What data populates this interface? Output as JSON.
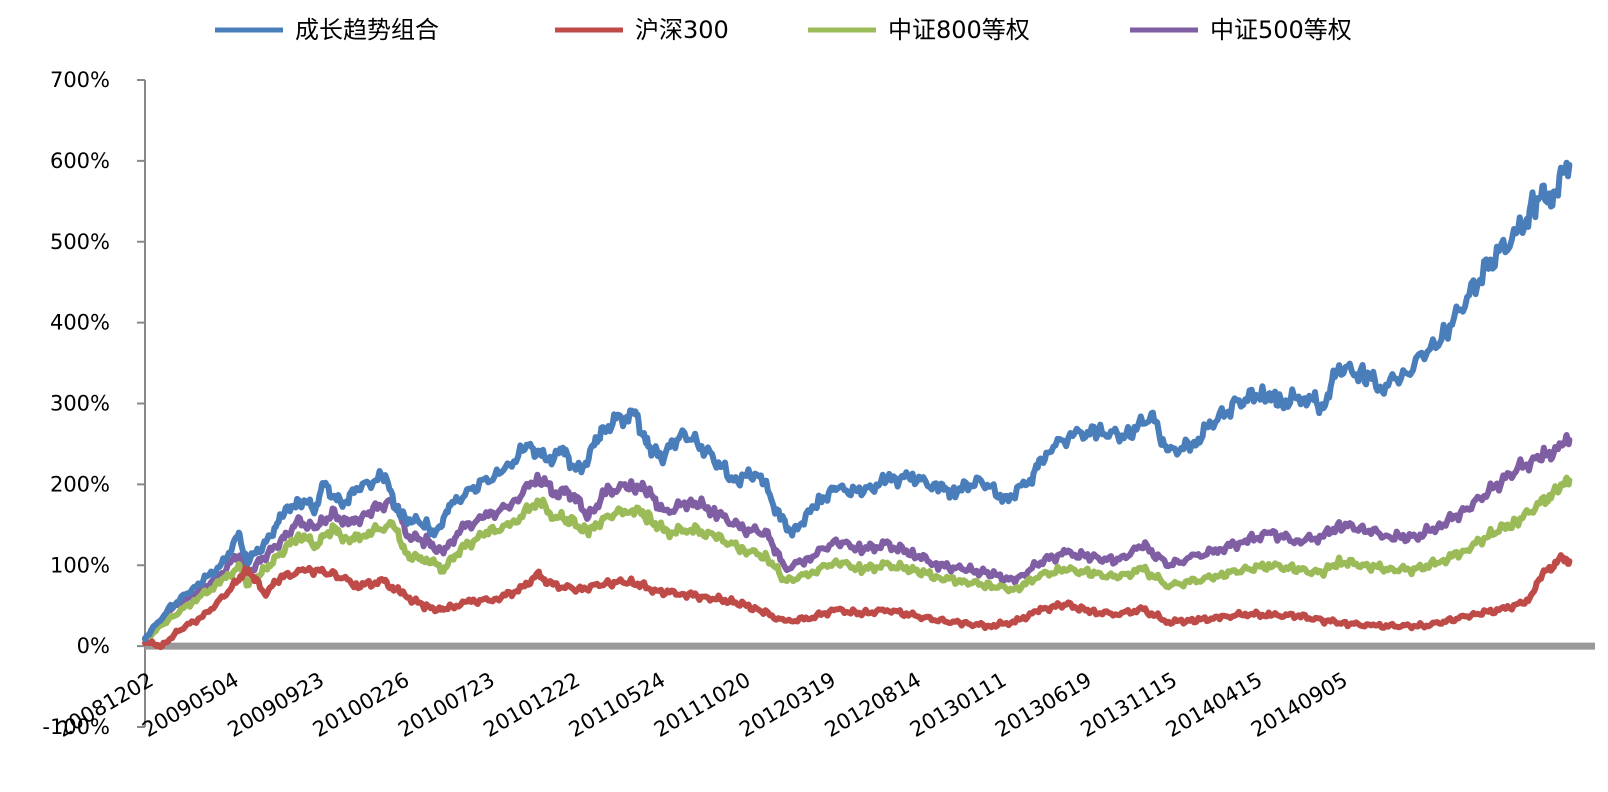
{
  "chart_data": {
    "type": "line",
    "title": "",
    "xlabel": "",
    "ylabel": "",
    "ylim": [
      -100,
      700
    ],
    "y_tick_labels": [
      "-100%",
      "0%",
      "100%",
      "200%",
      "300%",
      "400%",
      "500%",
      "600%",
      "700%"
    ],
    "y_tick_values": [
      -100,
      0,
      100,
      200,
      300,
      400,
      500,
      600,
      700
    ],
    "x_tick_labels": [
      "20081202",
      "20090504",
      "20090923",
      "20100226",
      "20100723",
      "20101222",
      "20110524",
      "20111020",
      "20120319",
      "20120814",
      "20130111",
      "20130619",
      "20131115",
      "20140415",
      "20140905"
    ],
    "grid": false,
    "legend_position": "top",
    "series": [
      {
        "name": "成长趋势组合",
        "color": "#4a7ebb",
        "values": [
          [
            0,
            10
          ],
          [
            0.3,
            48
          ],
          [
            0.6,
            75
          ],
          [
            0.9,
            100
          ],
          [
            1.1,
            138
          ],
          [
            1.2,
            105
          ],
          [
            1.4,
            125
          ],
          [
            1.6,
            160
          ],
          [
            1.8,
            182
          ],
          [
            2,
            170
          ],
          [
            2.1,
            200
          ],
          [
            2.3,
            175
          ],
          [
            2.5,
            195
          ],
          [
            2.8,
            210
          ],
          [
            3,
            160
          ],
          [
            3.3,
            150
          ],
          [
            3.4,
            140
          ],
          [
            3.6,
            175
          ],
          [
            3.9,
            200
          ],
          [
            4.2,
            215
          ],
          [
            4.5,
            250
          ],
          [
            4.7,
            230
          ],
          [
            4.9,
            240
          ],
          [
            5.1,
            215
          ],
          [
            5.3,
            255
          ],
          [
            5.5,
            280
          ],
          [
            5.75,
            285
          ],
          [
            5.9,
            250
          ],
          [
            6.05,
            232
          ],
          [
            6.3,
            265
          ],
          [
            6.6,
            240
          ],
          [
            6.9,
            205
          ],
          [
            7.2,
            215
          ],
          [
            7.45,
            158
          ],
          [
            7.6,
            140
          ],
          [
            7.9,
            180
          ],
          [
            8.1,
            195
          ],
          [
            8.4,
            190
          ],
          [
            8.7,
            205
          ],
          [
            9,
            210
          ],
          [
            9.3,
            195
          ],
          [
            9.5,
            192
          ],
          [
            9.8,
            205
          ],
          [
            10.1,
            180
          ],
          [
            10.4,
            210
          ],
          [
            10.6,
            245
          ],
          [
            10.9,
            262
          ],
          [
            11.2,
            265
          ],
          [
            11.5,
            260
          ],
          [
            11.8,
            285
          ],
          [
            12,
            240
          ],
          [
            12.3,
            250
          ],
          [
            12.5,
            275
          ],
          [
            12.8,
            300
          ],
          [
            13.1,
            315
          ],
          [
            13.3,
            300
          ],
          [
            13.6,
            310
          ],
          [
            13.8,
            295
          ],
          [
            14,
            345
          ],
          [
            14.3,
            335
          ],
          [
            14.5,
            320
          ],
          [
            14.8,
            340
          ],
          [
            15.2,
            380
          ],
          [
            15.5,
            430
          ],
          [
            15.8,
            480
          ],
          [
            16.1,
            510
          ],
          [
            16.3,
            550
          ],
          [
            16.5,
            560
          ],
          [
            16.7,
            595
          ]
        ]
      },
      {
        "name": "沪深300",
        "color": "#be4b48",
        "values": [
          [
            0,
            5
          ],
          [
            0.2,
            0
          ],
          [
            0.4,
            20
          ],
          [
            0.7,
            38
          ],
          [
            1,
            70
          ],
          [
            1.2,
            97
          ],
          [
            1.4,
            65
          ],
          [
            1.6,
            85
          ],
          [
            1.9,
            95
          ],
          [
            2.2,
            90
          ],
          [
            2.5,
            75
          ],
          [
            2.8,
            80
          ],
          [
            3,
            65
          ],
          [
            3.3,
            48
          ],
          [
            3.5,
            45
          ],
          [
            3.8,
            55
          ],
          [
            4.1,
            58
          ],
          [
            4.4,
            70
          ],
          [
            4.6,
            88
          ],
          [
            4.8,
            75
          ],
          [
            5.1,
            70
          ],
          [
            5.4,
            78
          ],
          [
            5.7,
            80
          ],
          [
            6,
            68
          ],
          [
            6.3,
            65
          ],
          [
            6.6,
            60
          ],
          [
            6.9,
            55
          ],
          [
            7.2,
            45
          ],
          [
            7.5,
            30
          ],
          [
            7.8,
            35
          ],
          [
            8.1,
            45
          ],
          [
            8.4,
            40
          ],
          [
            8.7,
            45
          ],
          [
            9,
            38
          ],
          [
            9.3,
            32
          ],
          [
            9.6,
            28
          ],
          [
            9.9,
            25
          ],
          [
            10.2,
            30
          ],
          [
            10.5,
            45
          ],
          [
            10.8,
            52
          ],
          [
            11.1,
            42
          ],
          [
            11.4,
            40
          ],
          [
            11.7,
            45
          ],
          [
            12,
            30
          ],
          [
            12.3,
            32
          ],
          [
            12.6,
            35
          ],
          [
            12.9,
            40
          ],
          [
            13.2,
            38
          ],
          [
            13.5,
            38
          ],
          [
            13.8,
            32
          ],
          [
            14.1,
            28
          ],
          [
            14.4,
            25
          ],
          [
            14.7,
            25
          ],
          [
            15,
            25
          ],
          [
            15.3,
            32
          ],
          [
            15.6,
            40
          ],
          [
            15.9,
            45
          ],
          [
            16.2,
            55
          ],
          [
            16.4,
            90
          ],
          [
            16.6,
            108
          ],
          [
            16.7,
            105
          ]
        ]
      },
      {
        "name": "中证800等权",
        "color": "#9bbb59",
        "values": [
          [
            0,
            8
          ],
          [
            0.3,
            35
          ],
          [
            0.6,
            58
          ],
          [
            0.9,
            80
          ],
          [
            1.1,
            98
          ],
          [
            1.2,
            75
          ],
          [
            1.4,
            95
          ],
          [
            1.6,
            115
          ],
          [
            1.8,
            138
          ],
          [
            2,
            125
          ],
          [
            2.2,
            145
          ],
          [
            2.4,
            130
          ],
          [
            2.6,
            140
          ],
          [
            2.9,
            150
          ],
          [
            3.1,
            110
          ],
          [
            3.3,
            108
          ],
          [
            3.5,
            95
          ],
          [
            3.7,
            120
          ],
          [
            4,
            140
          ],
          [
            4.3,
            150
          ],
          [
            4.6,
            180
          ],
          [
            4.8,
            160
          ],
          [
            5,
            155
          ],
          [
            5.2,
            140
          ],
          [
            5.4,
            160
          ],
          [
            5.7,
            170
          ],
          [
            5.9,
            160
          ],
          [
            6.1,
            140
          ],
          [
            6.4,
            145
          ],
          [
            6.7,
            135
          ],
          [
            7,
            120
          ],
          [
            7.3,
            110
          ],
          [
            7.5,
            80
          ],
          [
            7.8,
            90
          ],
          [
            8.1,
            105
          ],
          [
            8.4,
            95
          ],
          [
            8.7,
            100
          ],
          [
            9,
            95
          ],
          [
            9.3,
            85
          ],
          [
            9.6,
            80
          ],
          [
            9.9,
            75
          ],
          [
            10.2,
            70
          ],
          [
            10.5,
            88
          ],
          [
            10.8,
            95
          ],
          [
            11.1,
            90
          ],
          [
            11.4,
            85
          ],
          [
            11.7,
            95
          ],
          [
            12,
            75
          ],
          [
            12.3,
            80
          ],
          [
            12.6,
            88
          ],
          [
            12.9,
            95
          ],
          [
            13.2,
            100
          ],
          [
            13.5,
            95
          ],
          [
            13.8,
            90
          ],
          [
            14,
            105
          ],
          [
            14.3,
            100
          ],
          [
            14.6,
            95
          ],
          [
            14.9,
            95
          ],
          [
            15.2,
            105
          ],
          [
            15.5,
            120
          ],
          [
            15.8,
            140
          ],
          [
            16.1,
            155
          ],
          [
            16.4,
            180
          ],
          [
            16.6,
            195
          ],
          [
            16.7,
            205
          ]
        ]
      },
      {
        "name": "中证500等权",
        "color": "#7f5ea3",
        "values": [
          [
            0,
            10
          ],
          [
            0.3,
            45
          ],
          [
            0.6,
            65
          ],
          [
            0.9,
            90
          ],
          [
            1.1,
            115
          ],
          [
            1.2,
            90
          ],
          [
            1.4,
            110
          ],
          [
            1.6,
            130
          ],
          [
            1.8,
            155
          ],
          [
            2,
            145
          ],
          [
            2.2,
            165
          ],
          [
            2.4,
            150
          ],
          [
            2.6,
            165
          ],
          [
            2.9,
            180
          ],
          [
            3.1,
            135
          ],
          [
            3.3,
            130
          ],
          [
            3.5,
            115
          ],
          [
            3.7,
            145
          ],
          [
            4,
            160
          ],
          [
            4.3,
            175
          ],
          [
            4.6,
            210
          ],
          [
            4.8,
            190
          ],
          [
            5,
            190
          ],
          [
            5.2,
            160
          ],
          [
            5.4,
            190
          ],
          [
            5.7,
            200
          ],
          [
            5.9,
            190
          ],
          [
            6.1,
            165
          ],
          [
            6.4,
            180
          ],
          [
            6.7,
            165
          ],
          [
            7,
            145
          ],
          [
            7.3,
            140
          ],
          [
            7.5,
            95
          ],
          [
            7.8,
            110
          ],
          [
            8.1,
            130
          ],
          [
            8.4,
            120
          ],
          [
            8.7,
            125
          ],
          [
            9,
            115
          ],
          [
            9.3,
            100
          ],
          [
            9.6,
            95
          ],
          [
            9.9,
            90
          ],
          [
            10.2,
            80
          ],
          [
            10.5,
            105
          ],
          [
            10.8,
            115
          ],
          [
            11.1,
            110
          ],
          [
            11.4,
            105
          ],
          [
            11.7,
            125
          ],
          [
            12,
            100
          ],
          [
            12.3,
            110
          ],
          [
            12.6,
            120
          ],
          [
            12.9,
            130
          ],
          [
            13.2,
            140
          ],
          [
            13.5,
            130
          ],
          [
            13.8,
            135
          ],
          [
            14,
            150
          ],
          [
            14.3,
            145
          ],
          [
            14.6,
            135
          ],
          [
            14.9,
            135
          ],
          [
            15.2,
            150
          ],
          [
            15.5,
            170
          ],
          [
            15.8,
            195
          ],
          [
            16.1,
            220
          ],
          [
            16.4,
            235
          ],
          [
            16.6,
            245
          ],
          [
            16.7,
            255
          ]
        ]
      }
    ]
  }
}
